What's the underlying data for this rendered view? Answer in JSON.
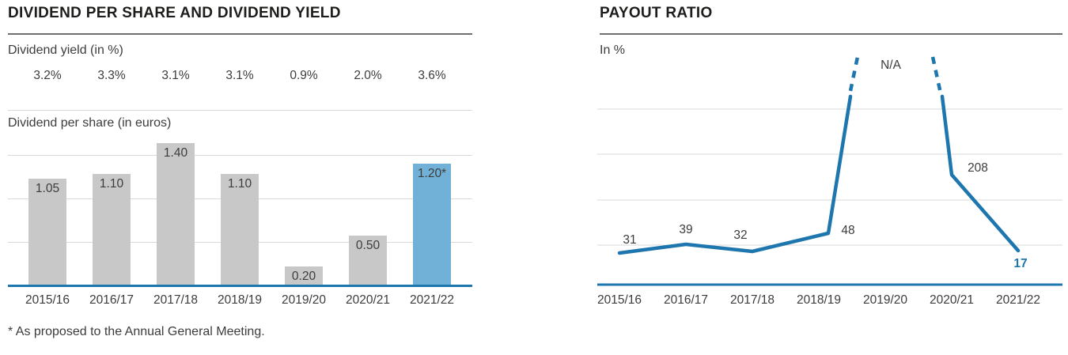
{
  "colors": {
    "text_dark": "#1d1d1b",
    "text_gray": "#3c3c3b",
    "rule_dark": "#6f6f6f",
    "grid_gray": "#d9d9d9",
    "bar_gray": "#c8c8c8",
    "bar_blue": "#72b1d7",
    "line_blue": "#1d76ad"
  },
  "dividend_chart": {
    "title": "DIVIDEND PER SHARE AND DIVIDEND YIELD",
    "yield_section_label": "Dividend yield (in %)",
    "yield_values": [
      "3.2%",
      "3.3%",
      "3.1%",
      "3.1%",
      "0.9%",
      "2.0%",
      "3.6%"
    ],
    "dps_section_label": "Dividend per share (in euros)",
    "bar_labels": [
      "1.05",
      "1.10",
      "1.40",
      "1.10",
      "0.20",
      "0.50",
      "1.20*"
    ],
    "categories": [
      "2015/16",
      "2016/17",
      "2017/18",
      "2018/19",
      "2019/20",
      "2020/21",
      "2021/22"
    ],
    "footnote": "* As proposed to the Annual General Meeting."
  },
  "payout_chart": {
    "title": "PAYOUT RATIO",
    "unit_label": "In %",
    "categories": [
      "2015/16",
      "2016/17",
      "2017/18",
      "2018/19",
      "2019/20",
      "2020/21",
      "2021/22"
    ],
    "point_labels": [
      "31",
      "39",
      "32",
      "48",
      "N/A",
      "208",
      "17"
    ]
  },
  "chart_data": [
    {
      "type": "bar",
      "title": "DIVIDEND PER SHARE AND DIVIDEND YIELD",
      "categories": [
        "2015/16",
        "2016/17",
        "2017/18",
        "2018/19",
        "2019/20",
        "2020/21",
        "2021/22"
      ],
      "series": [
        {
          "name": "Dividend yield (in %)",
          "unit": "%",
          "values": [
            3.2,
            3.3,
            3.1,
            3.1,
            0.9,
            2.0,
            3.6
          ]
        },
        {
          "name": "Dividend per share (in euros)",
          "unit": "EUR",
          "values": [
            1.05,
            1.1,
            1.4,
            1.1,
            0.2,
            0.5,
            1.2
          ]
        }
      ],
      "highlight_index": 6,
      "highlight_note": "* As proposed to the Annual General Meeting.",
      "ylim": [
        0,
        1.5
      ],
      "grid": true,
      "legend_position": "none"
    },
    {
      "type": "line",
      "title": "PAYOUT RATIO",
      "ylabel": "In %",
      "categories": [
        "2015/16",
        "2016/17",
        "2017/18",
        "2018/19",
        "2019/20",
        "2020/21",
        "2021/22"
      ],
      "values": [
        31,
        39,
        32,
        48,
        null,
        208,
        17
      ],
      "na_index": 4,
      "na_label": "N/A",
      "highlight_index": 6,
      "grid": true,
      "legend_position": "none"
    }
  ]
}
